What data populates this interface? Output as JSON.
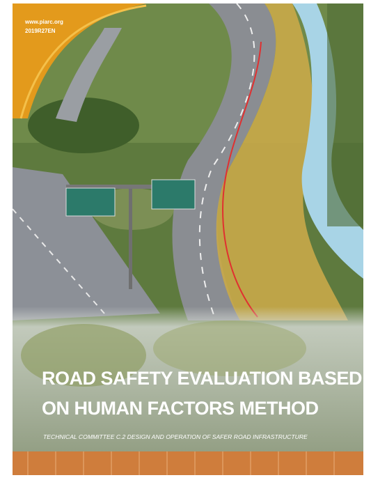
{
  "header": {
    "website": "www.piarc.org",
    "code": "2019R27EN"
  },
  "title": {
    "lines": [
      "ROAD SAFETY EVALUATION BASED",
      "ON HUMAN FACTORS METHOD"
    ]
  },
  "subtitle": "TECHNICAL COMMITTEE C.2 DESIGN AND OPERATION OF SAFER ROAD INFRASTRUCTURE"
}
